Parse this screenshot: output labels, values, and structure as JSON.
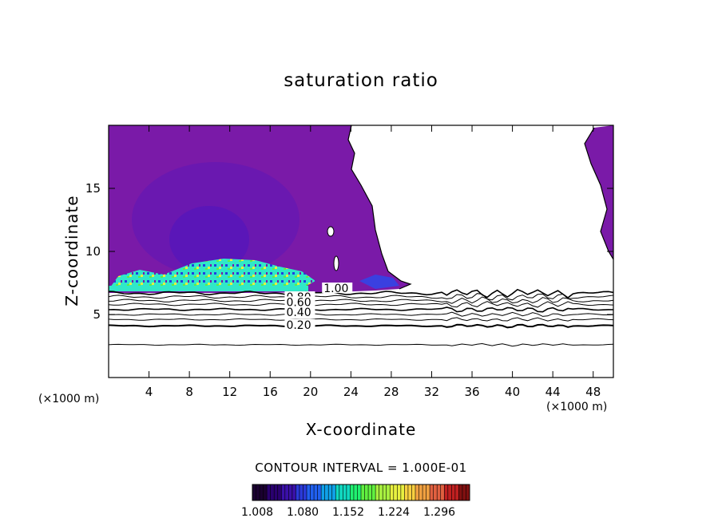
{
  "chart_data": {
    "type": "heatmap",
    "title": "saturation ratio",
    "xlabel": "X-coordinate",
    "ylabel": "Z-coordinate",
    "x_unit": "(×1000 m)",
    "xlim": [
      0,
      50
    ],
    "ylim": [
      0,
      20
    ],
    "x_ticks": [
      4,
      8,
      12,
      16,
      20,
      24,
      28,
      32,
      36,
      40,
      44,
      48
    ],
    "y_ticks": [
      5,
      10,
      15
    ],
    "contour_interval_text": "CONTOUR INTERVAL = 1.000E-01",
    "contour_labels": [
      {
        "text": "1.00",
        "x": 21.3,
        "y": 6.9
      },
      {
        "text": "0.80",
        "x": 17.6,
        "y": 6.2
      },
      {
        "text": "0.60",
        "x": 17.6,
        "y": 5.8
      },
      {
        "text": "0.40",
        "x": 17.6,
        "y": 5.0
      },
      {
        "text": "0.20",
        "x": 17.6,
        "y": 4.0
      }
    ],
    "colorbar": {
      "labels": [
        "1.008",
        "1.080",
        "1.152",
        "1.224",
        "1.296"
      ],
      "colors": [
        "#1a0030",
        "#2a0070",
        "#3a10a8",
        "#2a3ad8",
        "#2060f0",
        "#10a0e8",
        "#10d8c0",
        "#20f070",
        "#60f040",
        "#a8f040",
        "#e8f040",
        "#f8d040",
        "#f0a040",
        "#e06040",
        "#c02020",
        "#801010"
      ]
    },
    "colors": {
      "cloud_base": "#7a1aa8",
      "cloud_core": "#5a1ab8",
      "cloud_inner": "#4a14c0"
    }
  }
}
